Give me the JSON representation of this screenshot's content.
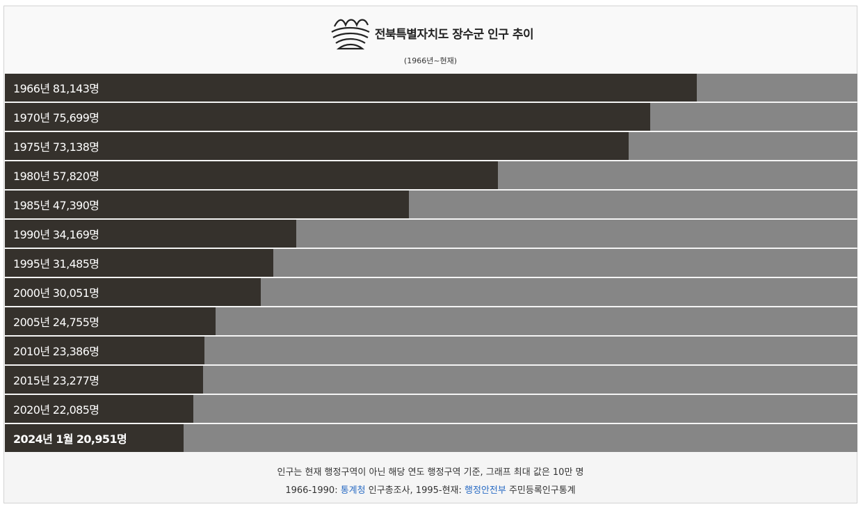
{
  "header": {
    "title": "전북특별자치도 장수군 인구 추이",
    "subtitle": "(1966년~현재)",
    "logo_icon": "jangsu-county-logo"
  },
  "chart_data": {
    "type": "bar",
    "orientation": "horizontal",
    "max": 100000,
    "colors": {
      "bar": "#35312c",
      "track": "#868686"
    },
    "bars": [
      {
        "year": "1966",
        "value": 81143,
        "label": "1966년 81,143명",
        "bold": false
      },
      {
        "year": "1970",
        "value": 75699,
        "label": "1970년 75,699명",
        "bold": false
      },
      {
        "year": "1975",
        "value": 73138,
        "label": "1975년 73,138명",
        "bold": false
      },
      {
        "year": "1980",
        "value": 57820,
        "label": "1980년 57,820명",
        "bold": false
      },
      {
        "year": "1985",
        "value": 47390,
        "label": "1985년 47,390명",
        "bold": false
      },
      {
        "year": "1990",
        "value": 34169,
        "label": "1990년 34,169명",
        "bold": false
      },
      {
        "year": "1995",
        "value": 31485,
        "label": "1995년 31,485명",
        "bold": false
      },
      {
        "year": "2000",
        "value": 30051,
        "label": "2000년 30,051명",
        "bold": false
      },
      {
        "year": "2005",
        "value": 24755,
        "label": "2005년 24,755명",
        "bold": false
      },
      {
        "year": "2010",
        "value": 23386,
        "label": "2010년 23,386명",
        "bold": false
      },
      {
        "year": "2015",
        "value": 23277,
        "label": "2015년 23,277명",
        "bold": false
      },
      {
        "year": "2020",
        "value": 22085,
        "label": "2020년 22,085명",
        "bold": false
      },
      {
        "year": "2024",
        "value": 20951,
        "label": "2024년 1월 20,951명",
        "bold": true
      }
    ]
  },
  "footer": {
    "note": "인구는 현재 행정구역이 아닌 해당 연도 행정구역 기준, 그래프 최대 값은 10만 명",
    "source_prefix": "1966-1990: ",
    "source_link1": "통계청",
    "source_mid": " 인구총조사, 1995-현재: ",
    "source_link2": "행정안전부",
    "source_suffix": " 주민등록인구통계"
  }
}
